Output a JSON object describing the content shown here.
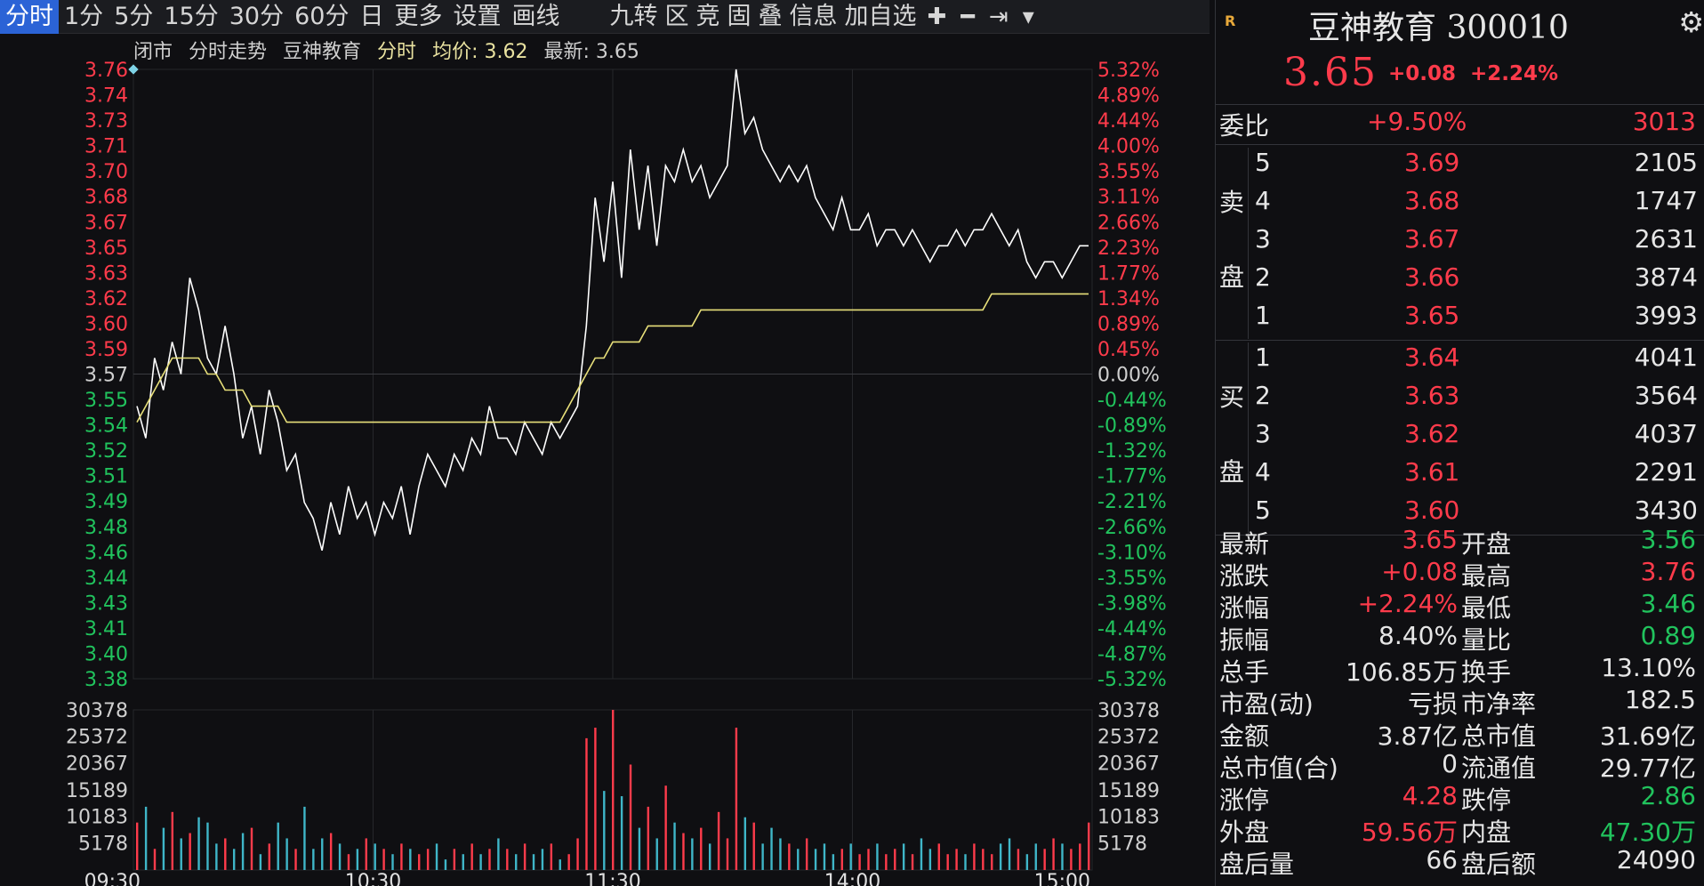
{
  "toolbar": {
    "items": [
      "分时",
      "1分",
      "5分",
      "15分",
      "30分",
      "60分",
      "日",
      "更多",
      "设置",
      "画线"
    ],
    "items2": [
      "九转",
      "区",
      "竞",
      "固",
      "叠",
      "信息",
      "加自选"
    ],
    "icons": [
      "plus-icon",
      "minus-icon",
      "pin-icon",
      "chevron-down-icon"
    ]
  },
  "chart_title": {
    "status": "闭市",
    "title": "分时走势",
    "name": "豆神教育",
    "mode": "分时",
    "avg_label": "均价: 3.62",
    "latest_label": "最新: 3.65"
  },
  "chart_data": {
    "type": "line",
    "y_ticks_left": [
      "3.76",
      "3.74",
      "3.73",
      "3.71",
      "3.70",
      "3.68",
      "3.67",
      "3.65",
      "3.63",
      "3.62",
      "3.60",
      "3.59",
      "3.57",
      "3.55",
      "3.54",
      "3.52",
      "3.51",
      "3.49",
      "3.48",
      "3.46",
      "3.44",
      "3.43",
      "3.41",
      "3.40",
      "3.38"
    ],
    "y_ticks_right": [
      "5.32%",
      "4.89%",
      "4.44%",
      "4.00%",
      "3.55%",
      "3.11%",
      "2.66%",
      "2.23%",
      "1.77%",
      "1.34%",
      "0.89%",
      "0.45%",
      "0.00%",
      "-0.44%",
      "-0.89%",
      "-1.32%",
      "-1.77%",
      "-2.21%",
      "-2.66%",
      "-3.10%",
      "-3.55%",
      "-3.98%",
      "-4.44%",
      "-4.87%",
      "-5.32%"
    ],
    "prev_close": 3.57,
    "ylim": [
      3.38,
      3.76
    ],
    "x_ticks": [
      "09:30",
      "10:30",
      "11:30",
      "14:00",
      "15:00"
    ],
    "price": [
      3.55,
      3.53,
      3.58,
      3.56,
      3.59,
      3.57,
      3.63,
      3.61,
      3.58,
      3.57,
      3.6,
      3.57,
      3.53,
      3.55,
      3.52,
      3.56,
      3.54,
      3.51,
      3.52,
      3.49,
      3.48,
      3.46,
      3.49,
      3.47,
      3.5,
      3.48,
      3.49,
      3.47,
      3.49,
      3.48,
      3.5,
      3.47,
      3.5,
      3.52,
      3.51,
      3.5,
      3.52,
      3.51,
      3.53,
      3.52,
      3.55,
      3.53,
      3.53,
      3.52,
      3.54,
      3.53,
      3.52,
      3.54,
      3.53,
      3.54,
      3.55,
      3.6,
      3.68,
      3.64,
      3.69,
      3.63,
      3.71,
      3.66,
      3.7,
      3.65,
      3.7,
      3.69,
      3.71,
      3.69,
      3.7,
      3.68,
      3.69,
      3.7,
      3.76,
      3.72,
      3.73,
      3.71,
      3.7,
      3.69,
      3.7,
      3.69,
      3.7,
      3.68,
      3.67,
      3.66,
      3.68,
      3.66,
      3.66,
      3.67,
      3.65,
      3.66,
      3.66,
      3.65,
      3.66,
      3.65,
      3.64,
      3.65,
      3.65,
      3.66,
      3.65,
      3.66,
      3.66,
      3.67,
      3.66,
      3.65,
      3.66,
      3.64,
      3.63,
      3.64,
      3.64,
      3.63,
      3.64,
      3.65,
      3.65
    ],
    "avg": [
      3.54,
      3.55,
      3.56,
      3.57,
      3.58,
      3.58,
      3.58,
      3.58,
      3.57,
      3.57,
      3.56,
      3.56,
      3.56,
      3.55,
      3.55,
      3.55,
      3.55,
      3.54,
      3.54,
      3.54,
      3.54,
      3.54,
      3.54,
      3.54,
      3.54,
      3.54,
      3.54,
      3.54,
      3.54,
      3.54,
      3.54,
      3.54,
      3.54,
      3.54,
      3.54,
      3.54,
      3.54,
      3.54,
      3.54,
      3.54,
      3.54,
      3.54,
      3.54,
      3.54,
      3.54,
      3.54,
      3.54,
      3.54,
      3.54,
      3.55,
      3.56,
      3.57,
      3.58,
      3.58,
      3.59,
      3.59,
      3.59,
      3.59,
      3.6,
      3.6,
      3.6,
      3.6,
      3.6,
      3.6,
      3.61,
      3.61,
      3.61,
      3.61,
      3.61,
      3.61,
      3.61,
      3.61,
      3.61,
      3.61,
      3.61,
      3.61,
      3.61,
      3.61,
      3.61,
      3.61,
      3.61,
      3.61,
      3.61,
      3.61,
      3.61,
      3.61,
      3.61,
      3.61,
      3.61,
      3.61,
      3.61,
      3.61,
      3.61,
      3.61,
      3.61,
      3.61,
      3.61,
      3.62,
      3.62,
      3.62,
      3.62,
      3.62,
      3.62,
      3.62,
      3.62,
      3.62,
      3.62,
      3.62,
      3.62
    ],
    "volume_ticks": [
      "30378",
      "25372",
      "20367",
      "15189",
      "10183",
      "5178"
    ],
    "volume_max": 30378,
    "volume": [
      9000,
      12000,
      4000,
      8000,
      11000,
      6000,
      7000,
      10000,
      9000,
      5000,
      6000,
      4000,
      7000,
      8000,
      3000,
      5000,
      9000,
      6000,
      4000,
      12000,
      4000,
      6000,
      7000,
      5000,
      3000,
      4000,
      6000,
      5000,
      4000,
      3000,
      5000,
      4000,
      3000,
      4000,
      5000,
      2000,
      4000,
      3000,
      5000,
      3000,
      4000,
      6000,
      4000,
      3000,
      5000,
      3000,
      4000,
      5000,
      2000,
      3000,
      6000,
      25000,
      27000,
      15000,
      30378,
      14000,
      20000,
      8000,
      12000,
      6000,
      16000,
      9000,
      7000,
      6000,
      8000,
      5000,
      11000,
      6000,
      27000,
      10000,
      9000,
      5000,
      8000,
      6000,
      5000,
      4000,
      6000,
      4000,
      5000,
      3000,
      4000,
      5000,
      3000,
      4000,
      5000,
      3000,
      4000,
      5000,
      3000,
      6000,
      4000,
      5000,
      3000,
      4000,
      3000,
      5000,
      4000,
      3000,
      5000,
      6000,
      4000,
      3000,
      5000,
      4000,
      6000,
      5000,
      4000,
      5000,
      9000
    ]
  },
  "panel": {
    "badge": "R",
    "title": "豆神教育 300010",
    "price": "3.65",
    "change": "+0.08",
    "change_pct": "+2.24%",
    "weibi_label": "委比",
    "weibi_pct": "+9.50%",
    "weibi_val": "3013",
    "sell_label": [
      "卖",
      "盘"
    ],
    "buy_label": [
      "买",
      "盘"
    ],
    "sells": [
      {
        "lvl": "5",
        "price": "3.69",
        "vol": "2105"
      },
      {
        "lvl": "4",
        "price": "3.68",
        "vol": "1747"
      },
      {
        "lvl": "3",
        "price": "3.67",
        "vol": "2631"
      },
      {
        "lvl": "2",
        "price": "3.66",
        "vol": "3874"
      },
      {
        "lvl": "1",
        "price": "3.65",
        "vol": "3993"
      }
    ],
    "buys": [
      {
        "lvl": "1",
        "price": "3.64",
        "vol": "4041"
      },
      {
        "lvl": "2",
        "price": "3.63",
        "vol": "3564"
      },
      {
        "lvl": "3",
        "price": "3.62",
        "vol": "4037"
      },
      {
        "lvl": "4",
        "price": "3.61",
        "vol": "2291"
      },
      {
        "lvl": "5",
        "price": "3.60",
        "vol": "3430"
      }
    ],
    "stats": [
      {
        "l1": "最新",
        "v1": "3.65",
        "c1": "red",
        "l2": "开盘",
        "v2": "3.56",
        "c2": "green"
      },
      {
        "l1": "涨跌",
        "v1": "+0.08",
        "c1": "red",
        "l2": "最高",
        "v2": "3.76",
        "c2": "red"
      },
      {
        "l1": "涨幅",
        "v1": "+2.24%",
        "c1": "red",
        "l2": "最低",
        "v2": "3.46",
        "c2": "green"
      },
      {
        "l1": "振幅",
        "v1": "8.40%",
        "c1": "white",
        "l2": "量比",
        "v2": "0.89",
        "c2": "green"
      },
      {
        "l1": "总手",
        "v1": "106.85万",
        "c1": "white",
        "l2": "换手",
        "v2": "13.10%",
        "c2": "white"
      },
      {
        "l1": "市盈(动)",
        "v1": "亏损",
        "c1": "white",
        "l2": "市净率",
        "v2": "182.5",
        "c2": "white"
      },
      {
        "l1": "金额",
        "v1": "3.87亿",
        "c1": "white",
        "l2": "总市值",
        "v2": "31.69亿",
        "c2": "white"
      },
      {
        "l1": "总市值(合)",
        "v1": "0",
        "c1": "white",
        "l2": "流通值",
        "v2": "29.77亿",
        "c2": "white"
      },
      {
        "l1": "涨停",
        "v1": "4.28",
        "c1": "red",
        "l2": "跌停",
        "v2": "2.86",
        "c2": "green"
      },
      {
        "l1": "外盘",
        "v1": "59.56万",
        "c1": "red",
        "l2": "内盘",
        "v2": "47.30万",
        "c2": "green"
      },
      {
        "l1": "盘后量",
        "v1": "66",
        "c1": "white",
        "l2": "盘后额",
        "v2": "24090",
        "c2": "white"
      }
    ]
  },
  "colors": {
    "up": "#ff3b4b",
    "down": "#21c35d",
    "price_line": "#ffffff",
    "avg_line": "#e8e07a",
    "grid": "#26272b",
    "active_tab": "#2b63d6"
  }
}
